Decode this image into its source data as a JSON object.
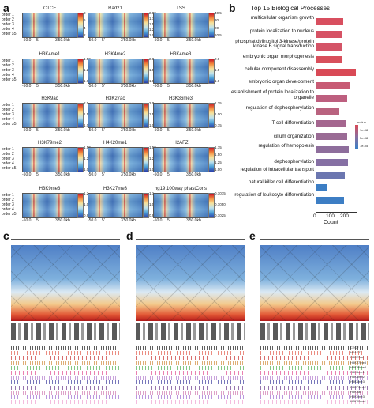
{
  "panels": {
    "a": "a",
    "b": "b",
    "c": "c",
    "d": "d",
    "e": "e"
  },
  "heatmaps": [
    {
      "title": "CTCF",
      "ticks": [
        "8",
        "6",
        "4",
        "2"
      ],
      "cbar": "jet"
    },
    {
      "title": "Rad21",
      "ticks": [
        "2.00",
        "1.75",
        "1.50",
        "1.25",
        "1.00"
      ],
      "cbar": "jet"
    },
    {
      "title": "TSS",
      "ticks": [
        "40.5",
        "30",
        "20",
        "10.5"
      ],
      "cbar": "jet"
    },
    {
      "title": "H3K4me1",
      "ticks": [
        "1.50",
        "1.25",
        "1.00"
      ],
      "cbar": "jet"
    },
    {
      "title": "H3K4me2",
      "ticks": [
        "2.0",
        "1.5",
        "1.0"
      ],
      "cbar": "jet"
    },
    {
      "title": "H3K4me3",
      "ticks": [
        "2.0",
        "1.5",
        "1.0"
      ],
      "cbar": "jet"
    },
    {
      "title": "H3K9ac",
      "ticks": [
        "2.0",
        "1.5",
        "1.0"
      ],
      "cbar": "jet"
    },
    {
      "title": "H3K27ac",
      "ticks": [
        "2.0",
        "1.5",
        "1.0"
      ],
      "cbar": "jet"
    },
    {
      "title": "H3K36me3",
      "ticks": [
        "1.25",
        "1.00",
        "0.75"
      ],
      "cbar": "jet"
    },
    {
      "title": "H3K79me2",
      "ticks": [
        "1.50",
        "1.25",
        "1.00"
      ],
      "cbar": "jet"
    },
    {
      "title": "H4K20me1",
      "ticks": [
        "1.50",
        "1.25",
        "1.00"
      ],
      "cbar": "jet"
    },
    {
      "title": "H2AFZ",
      "ticks": [
        "1.75",
        "1.50",
        "1.25",
        "1.00"
      ],
      "cbar": "jet"
    },
    {
      "title": "H3K9me3",
      "ticks": [
        "1.2",
        "1.0",
        "0.8"
      ],
      "cbar": "jet"
    },
    {
      "title": "H3K27me3",
      "ticks": [
        "1.1",
        "1.0",
        "0.9"
      ],
      "cbar": "jet"
    },
    {
      "title": "hg19 100way phastCons",
      "ticks": [
        "0.1075",
        "0.1050",
        "0.1025"
      ],
      "cbar": "jet"
    }
  ],
  "row_labels": [
    "order 1",
    "order 2",
    "order 3",
    "order 4",
    "order ≥5"
  ],
  "x_labels": {
    "left": "-50.0",
    "mid": "5'",
    "right": "3'50.0kb"
  },
  "go_chart": {
    "title": "Top 15 Biological Processes",
    "xlabel": "Count",
    "x_ticks": [
      "0",
      "100",
      "200"
    ],
    "legend_title": "pvalue",
    "legend_ticks": [
      "1e-08",
      "5e-08",
      "1e-05"
    ],
    "terms": [
      {
        "label": "multicellular organism growth",
        "count": 175,
        "color": "#d84f5f"
      },
      {
        "label": "protein localization to nucleus",
        "count": 170,
        "color": "#d65264"
      },
      {
        "label": "phosphatidylinositol 3-kinase/protein kinase B signal transduction",
        "count": 168,
        "color": "#d45467"
      },
      {
        "label": "embryonic organ morphogenesis",
        "count": 172,
        "color": "#d8505c"
      },
      {
        "label": "cellular component disassembly",
        "count": 255,
        "color": "#d94a56"
      },
      {
        "label": "embryonic organ development",
        "count": 218,
        "color": "#c85a74"
      },
      {
        "label": "establishment of protein localization to organelle",
        "count": 200,
        "color": "#bd5f7f"
      },
      {
        "label": "regulation of dephosphorylation",
        "count": 150,
        "color": "#b9637f"
      },
      {
        "label": "T cell differentiation",
        "count": 190,
        "color": "#a5668f"
      },
      {
        "label": "cilium organization",
        "count": 200,
        "color": "#9a6b95"
      },
      {
        "label": "regulation of hemopoiesis",
        "count": 210,
        "color": "#8e6e9c"
      },
      {
        "label": "dephosphorylation",
        "count": 205,
        "color": "#8670a4"
      },
      {
        "label": "regulation of intracellular transport",
        "count": 185,
        "color": "#6b76b0"
      },
      {
        "label": "natural killer cell differentiation",
        "count": 70,
        "color": "#3c7ec4"
      },
      {
        "label": "regulation of leukocyte differentiation",
        "count": 180,
        "color": "#3d7ec4"
      }
    ]
  },
  "track_labels": [
    "CTCF",
    "H2AFZ",
    "H3K27ac",
    "H3K27me3",
    "H3K36me3",
    "H3K4me1",
    "H3K4me2",
    "H3K4me3",
    "H3K79me2",
    "H3K9ac",
    "H3K9me3",
    "H4K20me1"
  ]
}
